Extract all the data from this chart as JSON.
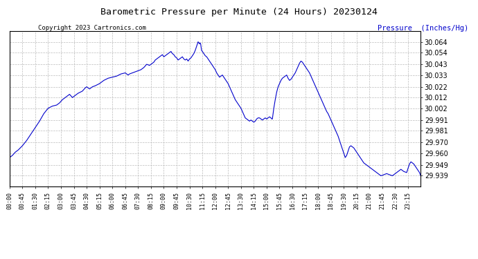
{
  "title": "Barometric Pressure per Minute (24 Hours) 20230124",
  "ylabel": "Pressure  (Inches/Hg)",
  "copyright_text": "Copyright 2023 Cartronics.com",
  "line_color": "#0000cc",
  "background_color": "#ffffff",
  "grid_color": "#bbbbbb",
  "yticks": [
    29.939,
    29.949,
    29.96,
    29.97,
    29.981,
    29.991,
    30.002,
    30.012,
    30.022,
    30.033,
    30.043,
    30.054,
    30.064
  ],
  "ylim": [
    29.929,
    30.074
  ],
  "xlim": [
    0,
    1439
  ],
  "xtick_minutes": [
    0,
    45,
    90,
    135,
    180,
    225,
    270,
    315,
    360,
    405,
    450,
    495,
    540,
    585,
    630,
    675,
    720,
    765,
    810,
    855,
    900,
    945,
    990,
    1035,
    1080,
    1125,
    1170,
    1215,
    1260,
    1305,
    1350,
    1395
  ],
  "xtick_labels": [
    "00:00",
    "00:45",
    "01:30",
    "02:15",
    "03:00",
    "03:45",
    "04:30",
    "05:15",
    "06:00",
    "06:45",
    "07:30",
    "08:15",
    "09:00",
    "09:45",
    "10:30",
    "11:15",
    "12:00",
    "12:45",
    "13:30",
    "14:15",
    "15:00",
    "15:45",
    "16:30",
    "17:15",
    "18:00",
    "18:45",
    "19:30",
    "20:15",
    "21:00",
    "21:45",
    "22:30",
    "23:15"
  ],
  "pressure_data": [
    [
      0,
      29.956
    ],
    [
      10,
      29.958
    ],
    [
      20,
      29.961
    ],
    [
      30,
      29.963
    ],
    [
      45,
      29.967
    ],
    [
      60,
      29.972
    ],
    [
      75,
      29.978
    ],
    [
      90,
      29.984
    ],
    [
      105,
      29.99
    ],
    [
      120,
      29.997
    ],
    [
      135,
      30.002
    ],
    [
      150,
      30.004
    ],
    [
      165,
      30.005
    ],
    [
      175,
      30.007
    ],
    [
      185,
      30.01
    ],
    [
      200,
      30.013
    ],
    [
      210,
      30.015
    ],
    [
      220,
      30.012
    ],
    [
      230,
      30.014
    ],
    [
      240,
      30.016
    ],
    [
      255,
      30.018
    ],
    [
      265,
      30.021
    ],
    [
      270,
      30.022
    ],
    [
      280,
      30.02
    ],
    [
      290,
      30.022
    ],
    [
      300,
      30.023
    ],
    [
      315,
      30.025
    ],
    [
      330,
      30.028
    ],
    [
      345,
      30.03
    ],
    [
      360,
      30.031
    ],
    [
      375,
      30.032
    ],
    [
      390,
      30.034
    ],
    [
      405,
      30.035
    ],
    [
      415,
      30.033
    ],
    [
      420,
      30.034
    ],
    [
      430,
      30.035
    ],
    [
      440,
      30.036
    ],
    [
      450,
      30.037
    ],
    [
      460,
      30.038
    ],
    [
      470,
      30.04
    ],
    [
      480,
      30.043
    ],
    [
      490,
      30.042
    ],
    [
      495,
      30.043
    ],
    [
      505,
      30.045
    ],
    [
      510,
      30.047
    ],
    [
      515,
      30.048
    ],
    [
      520,
      30.049
    ],
    [
      530,
      30.051
    ],
    [
      535,
      30.052
    ],
    [
      540,
      30.05
    ],
    [
      545,
      30.051
    ],
    [
      550,
      30.052
    ],
    [
      555,
      30.053
    ],
    [
      560,
      30.054
    ],
    [
      565,
      30.055
    ],
    [
      570,
      30.053
    ],
    [
      575,
      30.052
    ],
    [
      580,
      30.05
    ],
    [
      585,
      30.049
    ],
    [
      590,
      30.047
    ],
    [
      595,
      30.048
    ],
    [
      600,
      30.049
    ],
    [
      605,
      30.05
    ],
    [
      610,
      30.048
    ],
    [
      615,
      30.047
    ],
    [
      620,
      30.048
    ],
    [
      625,
      30.046
    ],
    [
      630,
      30.048
    ],
    [
      635,
      30.049
    ],
    [
      640,
      30.051
    ],
    [
      645,
      30.053
    ],
    [
      650,
      30.056
    ],
    [
      655,
      30.06
    ],
    [
      660,
      30.064
    ],
    [
      665,
      30.062
    ],
    [
      667,
      30.063
    ],
    [
      669,
      30.062
    ],
    [
      672,
      30.056
    ],
    [
      675,
      30.055
    ],
    [
      680,
      30.053
    ],
    [
      685,
      30.051
    ],
    [
      690,
      30.05
    ],
    [
      695,
      30.048
    ],
    [
      700,
      30.046
    ],
    [
      705,
      30.044
    ],
    [
      710,
      30.042
    ],
    [
      715,
      30.04
    ],
    [
      720,
      30.038
    ],
    [
      725,
      30.035
    ],
    [
      730,
      30.033
    ],
    [
      735,
      30.031
    ],
    [
      740,
      30.032
    ],
    [
      745,
      30.033
    ],
    [
      750,
      30.031
    ],
    [
      755,
      30.029
    ],
    [
      760,
      30.027
    ],
    [
      765,
      30.025
    ],
    [
      770,
      30.022
    ],
    [
      775,
      30.019
    ],
    [
      780,
      30.016
    ],
    [
      785,
      30.013
    ],
    [
      790,
      30.01
    ],
    [
      795,
      30.008
    ],
    [
      800,
      30.006
    ],
    [
      805,
      30.004
    ],
    [
      810,
      30.002
    ],
    [
      815,
      29.999
    ],
    [
      820,
      29.996
    ],
    [
      825,
      29.993
    ],
    [
      830,
      29.992
    ],
    [
      835,
      29.991
    ],
    [
      840,
      29.99
    ],
    [
      845,
      29.991
    ],
    [
      850,
      29.99
    ],
    [
      855,
      29.989
    ],
    [
      860,
      29.99
    ],
    [
      865,
      29.992
    ],
    [
      870,
      29.993
    ],
    [
      875,
      29.993
    ],
    [
      880,
      29.992
    ],
    [
      885,
      29.991
    ],
    [
      890,
      29.992
    ],
    [
      895,
      29.993
    ],
    [
      900,
      29.992
    ],
    [
      905,
      29.993
    ],
    [
      910,
      29.994
    ],
    [
      915,
      29.993
    ],
    [
      918,
      29.992
    ],
    [
      920,
      29.992
    ],
    [
      925,
      30.002
    ],
    [
      930,
      30.01
    ],
    [
      935,
      30.017
    ],
    [
      940,
      30.022
    ],
    [
      945,
      30.025
    ],
    [
      950,
      30.028
    ],
    [
      955,
      30.03
    ],
    [
      960,
      30.031
    ],
    [
      965,
      30.032
    ],
    [
      970,
      30.033
    ],
    [
      975,
      30.03
    ],
    [
      980,
      30.028
    ],
    [
      985,
      30.029
    ],
    [
      990,
      30.031
    ],
    [
      995,
      30.033
    ],
    [
      1000,
      30.035
    ],
    [
      1005,
      30.038
    ],
    [
      1010,
      30.041
    ],
    [
      1015,
      30.044
    ],
    [
      1020,
      30.046
    ],
    [
      1025,
      30.045
    ],
    [
      1030,
      30.043
    ],
    [
      1035,
      30.041
    ],
    [
      1040,
      30.039
    ],
    [
      1045,
      30.037
    ],
    [
      1050,
      30.035
    ],
    [
      1055,
      30.032
    ],
    [
      1060,
      30.029
    ],
    [
      1065,
      30.026
    ],
    [
      1070,
      30.023
    ],
    [
      1075,
      30.02
    ],
    [
      1080,
      30.017
    ],
    [
      1085,
      30.014
    ],
    [
      1090,
      30.011
    ],
    [
      1095,
      30.008
    ],
    [
      1100,
      30.005
    ],
    [
      1105,
      30.002
    ],
    [
      1110,
      29.999
    ],
    [
      1115,
      29.997
    ],
    [
      1120,
      29.994
    ],
    [
      1125,
      29.991
    ],
    [
      1130,
      29.988
    ],
    [
      1135,
      29.985
    ],
    [
      1140,
      29.982
    ],
    [
      1145,
      29.979
    ],
    [
      1150,
      29.976
    ],
    [
      1155,
      29.972
    ],
    [
      1160,
      29.968
    ],
    [
      1165,
      29.964
    ],
    [
      1170,
      29.96
    ],
    [
      1175,
      29.956
    ],
    [
      1180,
      29.958
    ],
    [
      1185,
      29.962
    ],
    [
      1190,
      29.966
    ],
    [
      1195,
      29.967
    ],
    [
      1200,
      29.966
    ],
    [
      1205,
      29.965
    ],
    [
      1210,
      29.963
    ],
    [
      1215,
      29.961
    ],
    [
      1220,
      29.959
    ],
    [
      1225,
      29.957
    ],
    [
      1230,
      29.955
    ],
    [
      1235,
      29.953
    ],
    [
      1240,
      29.951
    ],
    [
      1245,
      29.95
    ],
    [
      1250,
      29.949
    ],
    [
      1255,
      29.948
    ],
    [
      1260,
      29.947
    ],
    [
      1265,
      29.946
    ],
    [
      1270,
      29.945
    ],
    [
      1275,
      29.944
    ],
    [
      1280,
      29.943
    ],
    [
      1285,
      29.942
    ],
    [
      1290,
      29.941
    ],
    [
      1295,
      29.94
    ],
    [
      1300,
      29.939
    ],
    [
      1310,
      29.94
    ],
    [
      1320,
      29.941
    ],
    [
      1330,
      29.94
    ],
    [
      1340,
      29.939
    ],
    [
      1350,
      29.941
    ],
    [
      1360,
      29.943
    ],
    [
      1370,
      29.945
    ],
    [
      1375,
      29.944
    ],
    [
      1380,
      29.943
    ],
    [
      1390,
      29.942
    ],
    [
      1395,
      29.946
    ],
    [
      1400,
      29.95
    ],
    [
      1405,
      29.952
    ],
    [
      1410,
      29.951
    ],
    [
      1415,
      29.95
    ],
    [
      1420,
      29.948
    ],
    [
      1425,
      29.946
    ],
    [
      1430,
      29.944
    ],
    [
      1435,
      29.942
    ],
    [
      1439,
      29.939
    ]
  ]
}
